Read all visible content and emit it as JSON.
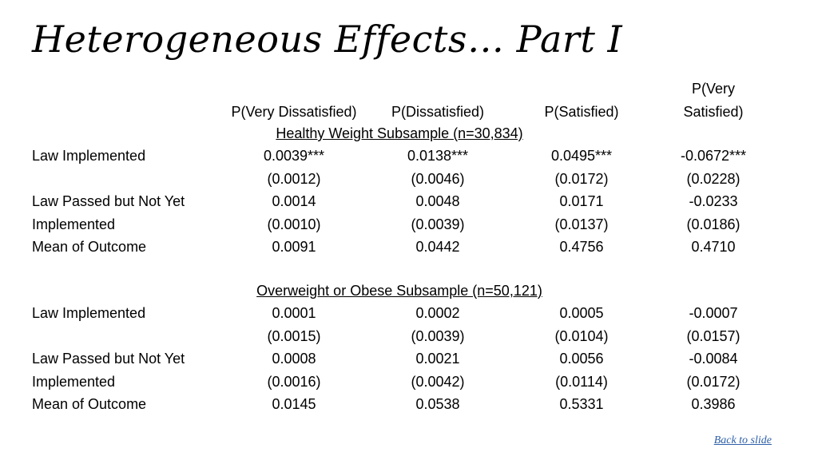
{
  "title": "Heterogeneous Effects… Part I",
  "columns": {
    "c1": "P(Very Dissatisfied)",
    "c2": "P(Dissatisfied)",
    "c3": "P(Satisfied)",
    "c4_line1": "P(Very",
    "c4_line2": "Satisfied)"
  },
  "panels": [
    {
      "heading": "Healthy Weight Subsample (n=30,834)",
      "rows": [
        {
          "label": "Law Implemented",
          "values": [
            "0.0039***",
            "0.0138***",
            "0.0495***",
            "-0.0672***"
          ]
        },
        {
          "label": "",
          "values": [
            "(0.0012)",
            "(0.0046)",
            "(0.0172)",
            "(0.0228)"
          ]
        },
        {
          "label": "Law Passed but Not Yet",
          "values": [
            "0.0014",
            "0.0048",
            "0.0171",
            "-0.0233"
          ]
        },
        {
          "label": "Implemented",
          "values": [
            "(0.0010)",
            "(0.0039)",
            "(0.0137)",
            "(0.0186)"
          ]
        },
        {
          "label": "Mean of Outcome",
          "values": [
            "0.0091",
            "0.0442",
            "0.4756",
            "0.4710"
          ]
        }
      ]
    },
    {
      "heading": "Overweight or Obese Subsample (n=50,121)",
      "rows": [
        {
          "label": "Law Implemented",
          "values": [
            "0.0001",
            "0.0002",
            "0.0005",
            "-0.0007"
          ]
        },
        {
          "label": "",
          "values": [
            "(0.0015)",
            "(0.0039)",
            "(0.0104)",
            "(0.0157)"
          ]
        },
        {
          "label": "Law Passed but Not Yet",
          "values": [
            "0.0008",
            "0.0021",
            "0.0056",
            "-0.0084"
          ]
        },
        {
          "label": "Implemented",
          "values": [
            "(0.0016)",
            "(0.0042)",
            "(0.0114)",
            "(0.0172)"
          ]
        },
        {
          "label": "Mean of Outcome",
          "values": [
            "0.0145",
            "0.0538",
            "0.5331",
            "0.3986"
          ]
        }
      ]
    }
  ],
  "back_link": "Back to slide"
}
